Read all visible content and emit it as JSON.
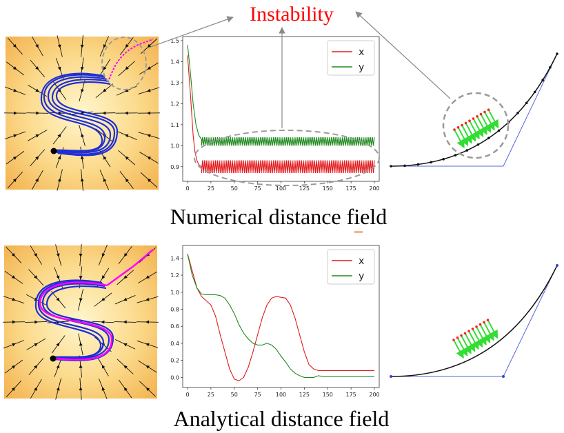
{
  "labels": {
    "instability": "Instability",
    "numerical": "Numerical distance field",
    "analytical": "Analytical distance field"
  },
  "colors": {
    "x": "#e31a1c",
    "y": "#1f8a1f",
    "accent": "#ff0000"
  },
  "chart_data": [
    {
      "type": "line",
      "title": "Numerical distance field",
      "xlabel": "",
      "ylabel": "",
      "xlim": [
        0,
        200
      ],
      "ylim": [
        0.85,
        1.5
      ],
      "xticks": [
        0,
        25,
        50,
        75,
        100,
        125,
        150,
        175,
        200
      ],
      "yticks": [
        0.9,
        1.0,
        1.1,
        1.2,
        1.3,
        1.4,
        1.5
      ],
      "legend": "top-right",
      "series": [
        {
          "name": "x",
          "color": "#e31a1c",
          "x": [
            0,
            3,
            6,
            8,
            10,
            12,
            15,
            20
          ],
          "values": [
            1.43,
            1.25,
            1.05,
            0.97,
            0.93,
            0.91,
            0.9,
            0.9
          ],
          "oscillation": {
            "from": 15,
            "to": 200,
            "low": 0.87,
            "high": 0.93,
            "period": 2
          }
        },
        {
          "name": "y",
          "color": "#1f8a1f",
          "x": [
            0,
            3,
            6,
            9,
            12,
            15,
            20
          ],
          "values": [
            1.48,
            1.35,
            1.2,
            1.1,
            1.05,
            1.03,
            1.02
          ],
          "oscillation": {
            "from": 15,
            "to": 200,
            "low": 1.0,
            "high": 1.04,
            "period": 2
          }
        }
      ]
    },
    {
      "type": "line",
      "title": "Analytical distance field",
      "xlabel": "",
      "ylabel": "",
      "xlim": [
        0,
        200
      ],
      "ylim": [
        -0.07,
        1.5
      ],
      "xticks": [
        0,
        25,
        50,
        75,
        100,
        125,
        150,
        175,
        200
      ],
      "yticks": [
        0.0,
        0.2,
        0.4,
        0.6,
        0.8,
        1.0,
        1.2,
        1.4
      ],
      "legend": "top-right",
      "series": [
        {
          "name": "x",
          "color": "#e31a1c",
          "x": [
            0,
            5,
            10,
            15,
            20,
            25,
            30,
            35,
            40,
            45,
            50,
            55,
            60,
            65,
            70,
            75,
            80,
            85,
            90,
            95,
            100,
            105,
            110,
            115,
            120,
            125,
            130,
            135,
            140,
            150,
            175,
            200
          ],
          "values": [
            1.45,
            1.25,
            1.05,
            0.95,
            0.9,
            0.85,
            0.72,
            0.5,
            0.3,
            0.1,
            -0.02,
            -0.04,
            0.0,
            0.12,
            0.3,
            0.5,
            0.7,
            0.85,
            0.93,
            0.95,
            0.94,
            0.93,
            0.85,
            0.7,
            0.5,
            0.3,
            0.15,
            0.1,
            0.08,
            0.08,
            0.08,
            0.08
          ]
        },
        {
          "name": "y",
          "color": "#1f8a1f",
          "x": [
            0,
            5,
            10,
            15,
            20,
            25,
            30,
            35,
            40,
            45,
            50,
            55,
            60,
            65,
            70,
            75,
            80,
            85,
            90,
            95,
            100,
            105,
            110,
            115,
            120,
            125,
            130,
            135,
            140,
            145,
            150,
            175,
            200
          ],
          "values": [
            1.45,
            1.2,
            1.05,
            0.98,
            0.97,
            0.97,
            0.97,
            0.96,
            0.93,
            0.85,
            0.75,
            0.62,
            0.52,
            0.45,
            0.4,
            0.38,
            0.38,
            0.4,
            0.38,
            0.33,
            0.25,
            0.18,
            0.1,
            0.05,
            0.02,
            0.0,
            0.0,
            0.0,
            0.02,
            0.01,
            0.01,
            0.01,
            0.01
          ]
        }
      ]
    }
  ]
}
